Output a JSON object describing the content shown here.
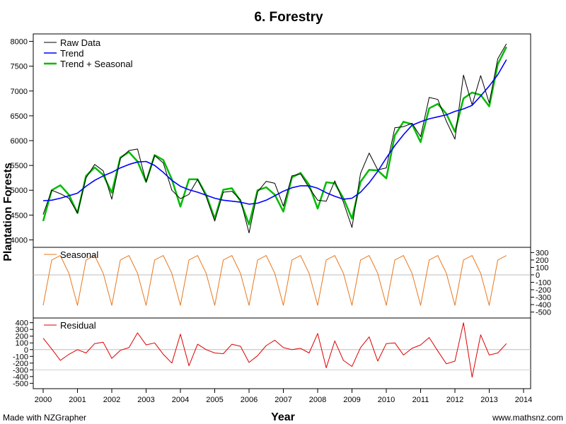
{
  "chart_data": {
    "type": "line",
    "title": "6. Forestry",
    "xlabel": "Year",
    "ylabel": "Plantation Forests",
    "footer_left": "Made with NZGrapher",
    "footer_right": "www.mathsnz.com",
    "x_ticks": [
      "2000",
      "2001",
      "2002",
      "2003",
      "2004",
      "2005",
      "2006",
      "2007",
      "2008",
      "2009",
      "2010",
      "2011",
      "2012",
      "2013",
      "2014"
    ],
    "xlim": [
      2000,
      2014
    ],
    "main": {
      "ylim": [
        3850,
        8150
      ],
      "y_ticks": [
        "4000",
        "4500",
        "5000",
        "5500",
        "6000",
        "6500",
        "7000",
        "7500",
        "8000"
      ],
      "legend": [
        "Raw Data",
        "Trend",
        "Trend + Seasonal"
      ],
      "colors": {
        "raw": "#000000",
        "trend": "#0000ff",
        "trend_seasonal": "#00bb00"
      }
    },
    "seasonal_panel": {
      "label": "Seasonal",
      "color": "#e8781e",
      "ylim": [
        -580,
        370
      ],
      "y_ticks": [
        "300",
        "200",
        "100",
        "0",
        "-100",
        "-200",
        "-300",
        "-400",
        "-500"
      ]
    },
    "residual_panel": {
      "label": "Residual",
      "color": "#dd0000",
      "ylim": [
        -580,
        470
      ],
      "y_ticks": [
        "400",
        "300",
        "200",
        "100",
        "0",
        "-100",
        "-200",
        "-300",
        "-400",
        "-500"
      ]
    },
    "x": [
      2000.0,
      2000.25,
      2000.5,
      2000.75,
      2001.0,
      2001.25,
      2001.5,
      2001.75,
      2002.0,
      2002.25,
      2002.5,
      2002.75,
      2003.0,
      2003.25,
      2003.5,
      2003.75,
      2004.0,
      2004.25,
      2004.5,
      2004.75,
      2005.0,
      2005.25,
      2005.5,
      2005.75,
      2006.0,
      2006.25,
      2006.5,
      2006.75,
      2007.0,
      2007.25,
      2007.5,
      2007.75,
      2008.0,
      2008.25,
      2008.5,
      2008.75,
      2009.0,
      2009.25,
      2009.5,
      2009.75,
      2010.0,
      2010.25,
      2010.5,
      2010.75,
      2011.0,
      2011.25,
      2011.5,
      2011.75,
      2012.0,
      2012.25,
      2012.5,
      2012.75,
      2013.0,
      2013.25,
      2013.5
    ],
    "series": [
      {
        "name": "Raw Data",
        "values": [
          4510,
          5000,
          4930,
          4840,
          4540,
          5250,
          5520,
          5390,
          4820,
          5640,
          5800,
          5830,
          5170,
          5700,
          5550,
          5000,
          4830,
          4920,
          5220,
          4870,
          4380,
          4960,
          4980,
          4810,
          4140,
          4970,
          5180,
          5140,
          4680,
          5290,
          5330,
          5050,
          4800,
          4780,
          5190,
          4760,
          4250,
          5340,
          5750,
          5410,
          5450,
          6260,
          6280,
          6350,
          6080,
          6870,
          6830,
          6390,
          6030,
          7320,
          6720,
          7310,
          6760,
          7650,
          7950
        ]
      },
      {
        "name": "Trend",
        "values": [
          4790,
          4800,
          4840,
          4890,
          4940,
          5080,
          5200,
          5290,
          5360,
          5450,
          5520,
          5570,
          5580,
          5500,
          5360,
          5200,
          5080,
          5010,
          4960,
          4900,
          4840,
          4800,
          4780,
          4760,
          4720,
          4740,
          4800,
          4890,
          4980,
          5050,
          5090,
          5090,
          5040,
          4950,
          4880,
          4820,
          4840,
          4960,
          5150,
          5380,
          5650,
          5900,
          6120,
          6310,
          6380,
          6440,
          6480,
          6520,
          6590,
          6640,
          6710,
          6900,
          7100,
          7330,
          7630
        ]
      },
      {
        "name": "Trend + Seasonal",
        "values": [
          4380,
          5000,
          5100,
          4910,
          4540,
          5290,
          5460,
          5310,
          4950,
          5660,
          5770,
          5580,
          5170,
          5710,
          5610,
          5220,
          4670,
          5220,
          5220,
          4910,
          4430,
          5010,
          5040,
          4780,
          4310,
          5000,
          5060,
          4910,
          4570,
          5260,
          5350,
          5110,
          4630,
          5160,
          5140,
          4840,
          4430,
          5170,
          5410,
          5400,
          5240,
          6110,
          6380,
          6330,
          5970,
          6650,
          6740,
          6540,
          6180,
          6850,
          6970,
          6920,
          6690,
          7540,
          7890
        ]
      },
      {
        "name": "Seasonal",
        "values": [
          -410,
          200,
          260,
          20,
          -410,
          200,
          260,
          20,
          -410,
          200,
          260,
          20,
          -410,
          200,
          260,
          20,
          -410,
          200,
          260,
          20,
          -410,
          200,
          260,
          20,
          -410,
          200,
          260,
          20,
          -410,
          200,
          260,
          20,
          -410,
          200,
          260,
          20,
          -410,
          200,
          260,
          20,
          -410,
          200,
          260,
          20,
          -410,
          200,
          260,
          20,
          -410,
          200,
          260,
          20,
          -410,
          200,
          260
        ]
      },
      {
        "name": "Residual",
        "values": [
          170,
          10,
          -160,
          -70,
          0,
          -50,
          90,
          110,
          -130,
          -10,
          30,
          250,
          70,
          100,
          -70,
          -200,
          230,
          -240,
          80,
          0,
          -50,
          -60,
          80,
          50,
          -190,
          -90,
          60,
          140,
          30,
          0,
          20,
          -50,
          240,
          -270,
          130,
          -160,
          -250,
          30,
          190,
          -170,
          90,
          100,
          -80,
          20,
          70,
          180,
          -20,
          -210,
          -170,
          400,
          -410,
          220,
          -80,
          -50,
          90
        ]
      }
    ]
  }
}
